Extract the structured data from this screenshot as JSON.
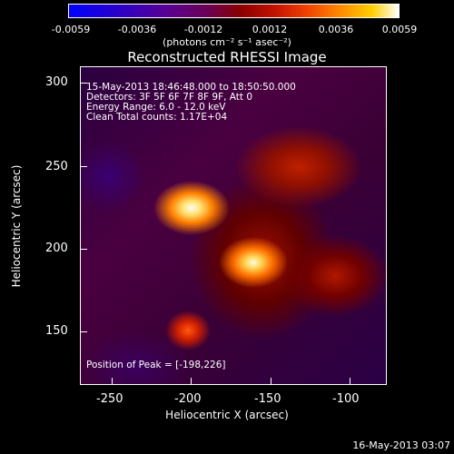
{
  "colorbar": {
    "ticks": [
      "-0.0059",
      "-0.0036",
      "-0.0012",
      "0.0012",
      "0.0036",
      "0.0059"
    ],
    "units": "(photons cm⁻² s⁻¹ asec⁻²)",
    "colors": [
      "#0000ff",
      "#5a0090",
      "#8a0000",
      "#f04000",
      "#ffd000",
      "#ffffff"
    ]
  },
  "title": "Reconstructed RHESSI Image",
  "info": {
    "time": "15-May-2013 18:46:48.000 to 18:50:50.000",
    "detectors": "Detectors: 3F 5F 6F 7F 8F 9F, Att 0",
    "energy": "Energy Range: 6.0 - 12.0 keV",
    "clean": "Clean     Total counts: 1.17E+04",
    "peak": "Position of Peak = [-198,226]"
  },
  "axes": {
    "xlabel": "Heliocentric X (arcsec)",
    "ylabel": "Heliocentric Y (arcsec)",
    "xticks": [
      "-250",
      "-200",
      "-150",
      "-100"
    ],
    "yticks": [
      "300",
      "250",
      "200",
      "150"
    ]
  },
  "timestamp": "16-May-2013 03:07"
}
